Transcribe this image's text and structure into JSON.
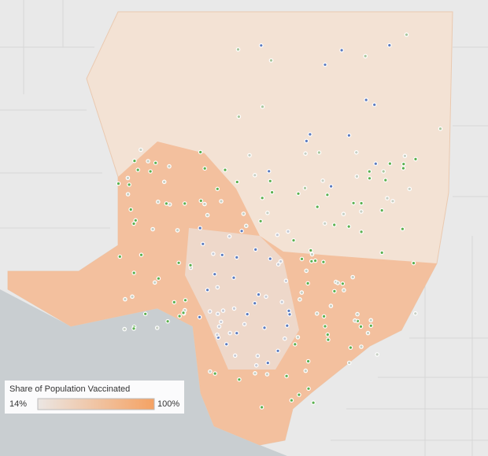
{
  "legend": {
    "title": "Share of Population Vaccinated",
    "min": {
      "value": 14,
      "label": "14%"
    },
    "max": {
      "value": 100,
      "label": "100%"
    },
    "color_low": "#ebe6e3",
    "color_high": "#f5a263"
  }
}
